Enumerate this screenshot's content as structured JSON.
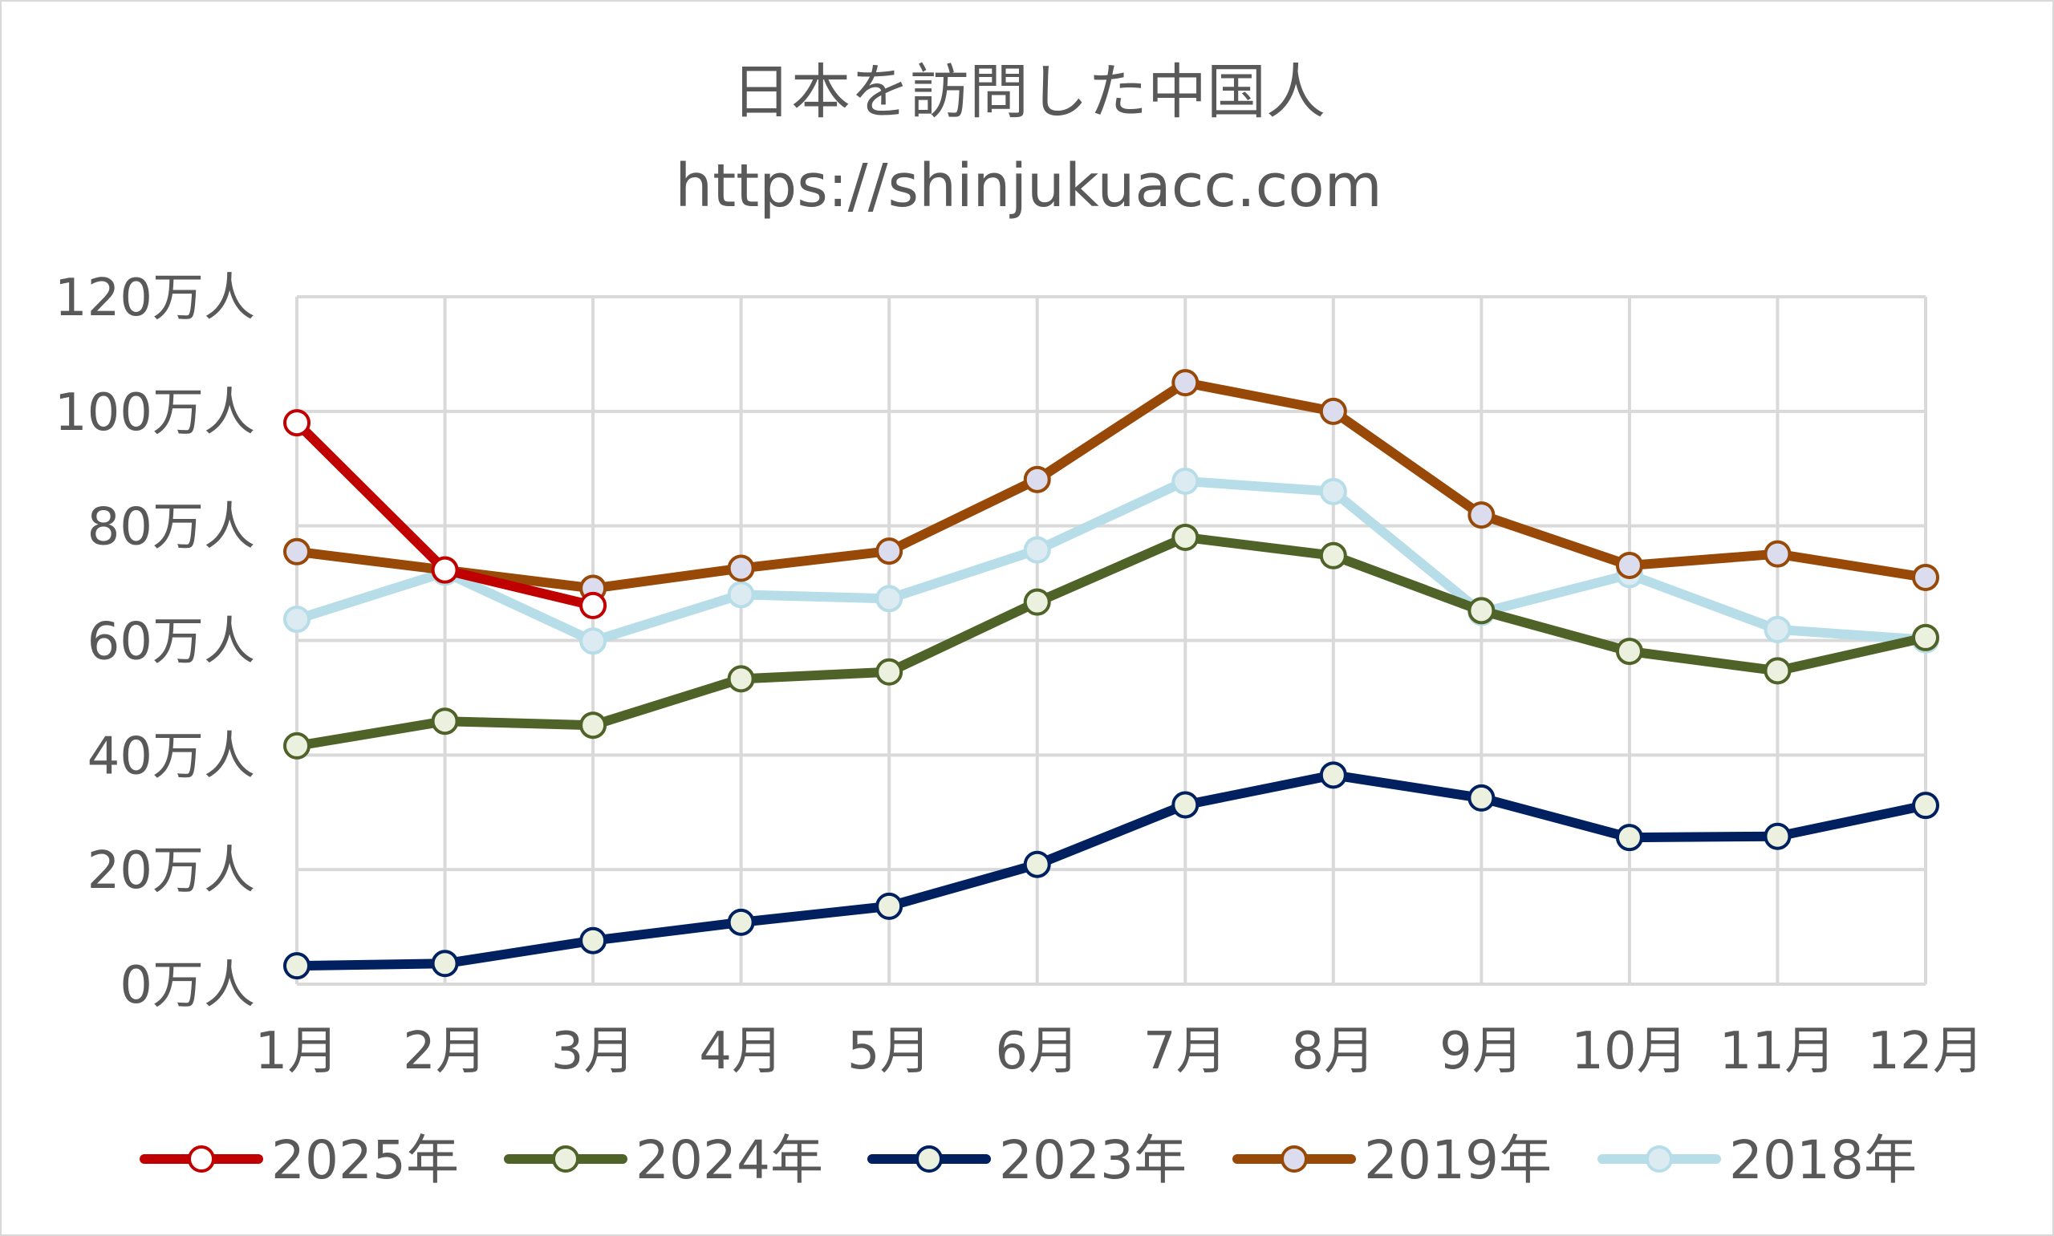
{
  "chart_data": {
    "type": "line",
    "title": "日本を訪問した中国人",
    "subtitle": "https://shinjukuacc.com",
    "xlabel": "",
    "ylabel": "",
    "categories": [
      "1月",
      "2月",
      "3月",
      "4月",
      "5月",
      "6月",
      "7月",
      "8月",
      "9月",
      "10月",
      "11月",
      "12月"
    ],
    "y_ticks": [
      "0万人",
      "20万人",
      "40万人",
      "60万人",
      "80万人",
      "100万人",
      "120万人"
    ],
    "y_tick_values": [
      0,
      20,
      40,
      60,
      80,
      100,
      120
    ],
    "ylim": [
      0,
      120
    ],
    "grid": true,
    "legend_position": "bottom",
    "series": [
      {
        "name": "2025年",
        "color": "#c00000",
        "marker_fill": "#ffffff",
        "values": [
          98.0,
          72.3,
          66.1,
          null,
          null,
          null,
          null,
          null,
          null,
          null,
          null,
          null
        ]
      },
      {
        "name": "2024年",
        "color": "#4f6228",
        "marker_fill": "#ebf1de",
        "values": [
          41.6,
          45.9,
          45.2,
          53.3,
          54.5,
          66.7,
          78.0,
          74.8,
          65.2,
          58.1,
          54.7,
          60.5
        ]
      },
      {
        "name": "2023年",
        "color": "#002060",
        "marker_fill": "#ebf1de",
        "values": [
          3.2,
          3.6,
          7.6,
          10.8,
          13.6,
          20.9,
          31.3,
          36.5,
          32.5,
          25.6,
          25.8,
          31.2
        ]
      },
      {
        "name": "2019年",
        "color": "#984807",
        "marker_fill": "#dcdcef",
        "values": [
          75.5,
          72.3,
          69.1,
          72.6,
          75.6,
          88.1,
          105.0,
          100.0,
          81.9,
          73.1,
          75.1,
          71.0
        ]
      },
      {
        "name": "2018年",
        "color": "#b7dde8",
        "marker_fill": "#dcebf2",
        "values": [
          63.7,
          71.9,
          59.9,
          68.0,
          67.3,
          75.8,
          87.8,
          86.0,
          64.9,
          71.5,
          61.9,
          60.1
        ]
      }
    ]
  }
}
